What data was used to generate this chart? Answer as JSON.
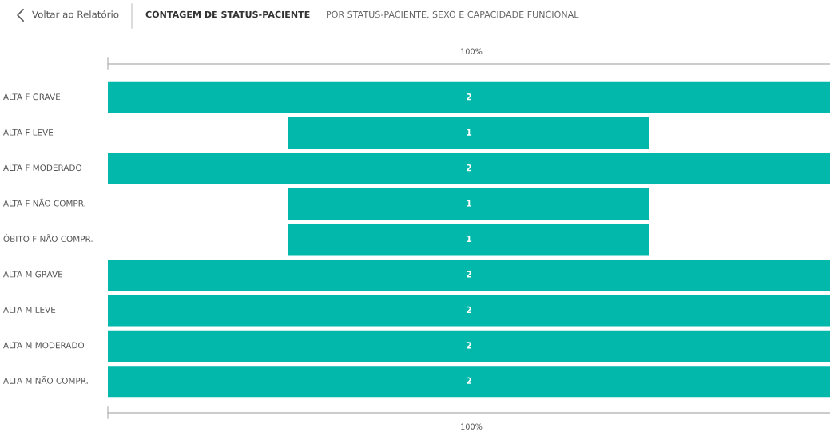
{
  "chart_data": {
    "type": "other",
    "title": "CONTAGEM DE STATUS-PACIENTE",
    "subtitle": "POR STATUS-PACIENTE, SEXO E CAPACIDADE FUNCIONAL",
    "categories": [
      "ALTA F GRAVE",
      "ALTA F LEVE",
      "ALTA F MODERADO",
      "ALTA F NÃO COMPR.",
      "ÓBITO F NÃO COMPR.",
      "ALTA M GRAVE",
      "ALTA M LEVE",
      "ALTA M MODERADO",
      "ALTA M NÃO COMPR."
    ],
    "values": [
      2,
      1,
      2,
      1,
      1,
      2,
      2,
      2,
      2
    ],
    "color": "#01b8aa",
    "data_labels": true,
    "annotations": [
      "Voltar ao Relatório",
      "100%",
      "100%"
    ]
  }
}
